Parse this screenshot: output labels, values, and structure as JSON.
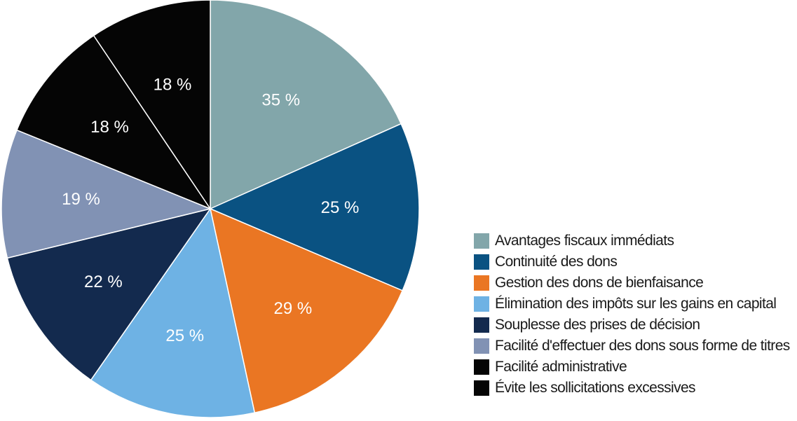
{
  "chart_data": {
    "type": "pie",
    "start_angle_deg": 0,
    "direction": "clockwise",
    "slices": [
      {
        "label": "Avantages fiscaux immédiats",
        "value": 35,
        "display": "35 %",
        "color": "#82a6aa"
      },
      {
        "label": "Continuité des dons",
        "value": 25,
        "display": "25 %",
        "color": "#0a5282"
      },
      {
        "label": "Gestion des dons de bienfaisance",
        "value": 29,
        "display": "29 %",
        "color": "#ea7623"
      },
      {
        "label": "Élimination des impôts sur les gains en capital",
        "value": 25,
        "display": "25 %",
        "color": "#6eb2e4"
      },
      {
        "label": "Souplesse des prises de décision",
        "value": 22,
        "display": "22 %",
        "color": "#132a4e"
      },
      {
        "label": "Facilité d'effectuer des dons sous forme de titres",
        "value": 19,
        "display": "19 %",
        "color": "#8192b4"
      },
      {
        "label": "Facilité administrative",
        "value": 18,
        "display": "18 %",
        "color": "#050505"
      },
      {
        "label": "Évite les sollicitations excessives",
        "value": 18,
        "display": "18 %",
        "color": "#050505"
      }
    ],
    "legend_position": "bottom-right"
  }
}
